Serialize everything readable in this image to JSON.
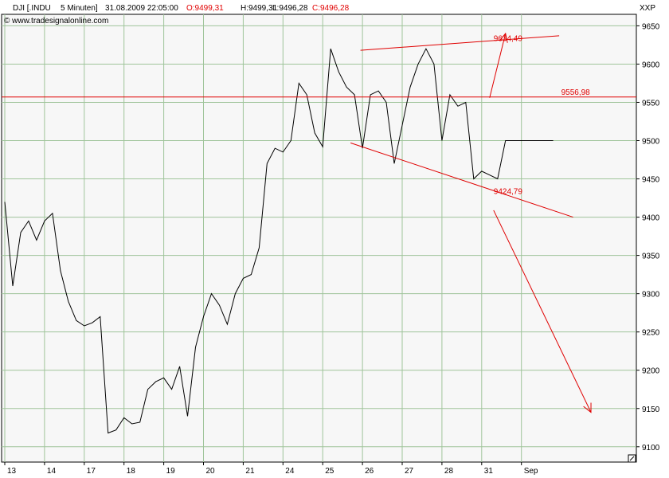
{
  "header": {
    "symbol": "DJI [.INDU",
    "interval": "5 Minuten]",
    "datetime": "31.08.2009 22:05:00",
    "open": "O:9499,31",
    "high": "H:9499,31",
    "low": "L:9496,28",
    "close": "C:9496,28",
    "copyright": "© www.tradesignalonline.com",
    "corner_label": "XXP"
  },
  "colors": {
    "open_close": "#e00000",
    "high_low": "#000000",
    "annotation": "#e00000",
    "grid": "#9fc49a",
    "price": "#000000"
  },
  "chart_data": {
    "type": "line",
    "title": "DJI [.INDU 5 Minuten]",
    "xlabel": "",
    "ylabel": "",
    "ylim": [
      9080,
      9665
    ],
    "y_ticks": [
      9100,
      9150,
      9200,
      9250,
      9300,
      9350,
      9400,
      9450,
      9500,
      9550,
      9600,
      9650
    ],
    "x_ticks": [
      "13",
      "14",
      "17",
      "18",
      "19",
      "20",
      "21",
      "24",
      "25",
      "26",
      "27",
      "28",
      "31",
      "Sep"
    ],
    "grid": true,
    "legend": "none",
    "series": [
      {
        "x": [
          0,
          0.2,
          0.4,
          0.6,
          0.8,
          1.0,
          1.2,
          1.4,
          1.6,
          1.8,
          2.0,
          2.2,
          2.4,
          2.6,
          2.8,
          3.0,
          3.2,
          3.4,
          3.6,
          3.8,
          4.0,
          4.2,
          4.4,
          4.6,
          4.8,
          5.0,
          5.2,
          5.4,
          5.6,
          5.8,
          6.0,
          6.2,
          6.4,
          6.6,
          6.8,
          7.0,
          7.2,
          7.4,
          7.6,
          7.8,
          8.0,
          8.2,
          8.4,
          8.6,
          8.8,
          9.0,
          9.2,
          9.4,
          9.6,
          9.8,
          10.0,
          10.2,
          10.4,
          10.6,
          10.8,
          11.0,
          11.2,
          11.4,
          11.6,
          11.8,
          12.0,
          12.2,
          12.4,
          12.6,
          12.8,
          13.0,
          13.2,
          13.4,
          13.6,
          13.8
        ],
        "values": [
          9420,
          9310,
          9380,
          9395,
          9370,
          9395,
          9405,
          9330,
          9290,
          9265,
          9258,
          9262,
          9270,
          9118,
          9122,
          9138,
          9130,
          9132,
          9175,
          9185,
          9190,
          9175,
          9205,
          9140,
          9230,
          9270,
          9300,
          9285,
          9260,
          9300,
          9320,
          9325,
          9360,
          9470,
          9490,
          9485,
          9500,
          9575,
          9560,
          9510,
          9492,
          9620,
          9590,
          9570,
          9560,
          9490,
          9560,
          9565,
          9550,
          9470,
          9520,
          9570,
          9600,
          9620,
          9600,
          9500,
          9560,
          9545,
          9550,
          9450,
          9460,
          9455,
          9450,
          9500,
          9500,
          9500,
          9500,
          9500,
          9500,
          9500
        ]
      }
    ],
    "annotations": {
      "horizontal_level": 9556.98,
      "lines": [
        {
          "label": "9634,49",
          "x": [
            8.95,
            13.95
          ],
          "y": [
            9618,
            9637
          ]
        },
        {
          "label": "9424,79",
          "x": [
            8.7,
            14.3
          ],
          "y": [
            9497,
            9400
          ]
        }
      ],
      "arrows": [
        {
          "x": [
            12.2,
            12.6
          ],
          "y": [
            9556,
            9640
          ]
        },
        {
          "x": [
            12.3,
            14.75
          ],
          "y": [
            9409,
            9145
          ]
        }
      ],
      "labels": [
        {
          "text": "9556,98",
          "x": 14.0,
          "y": 9556.98
        },
        {
          "text": "9634,49",
          "x": 12.3,
          "y": 9627
        },
        {
          "text": "9424,79",
          "x": 12.3,
          "y": 9427
        }
      ]
    }
  }
}
